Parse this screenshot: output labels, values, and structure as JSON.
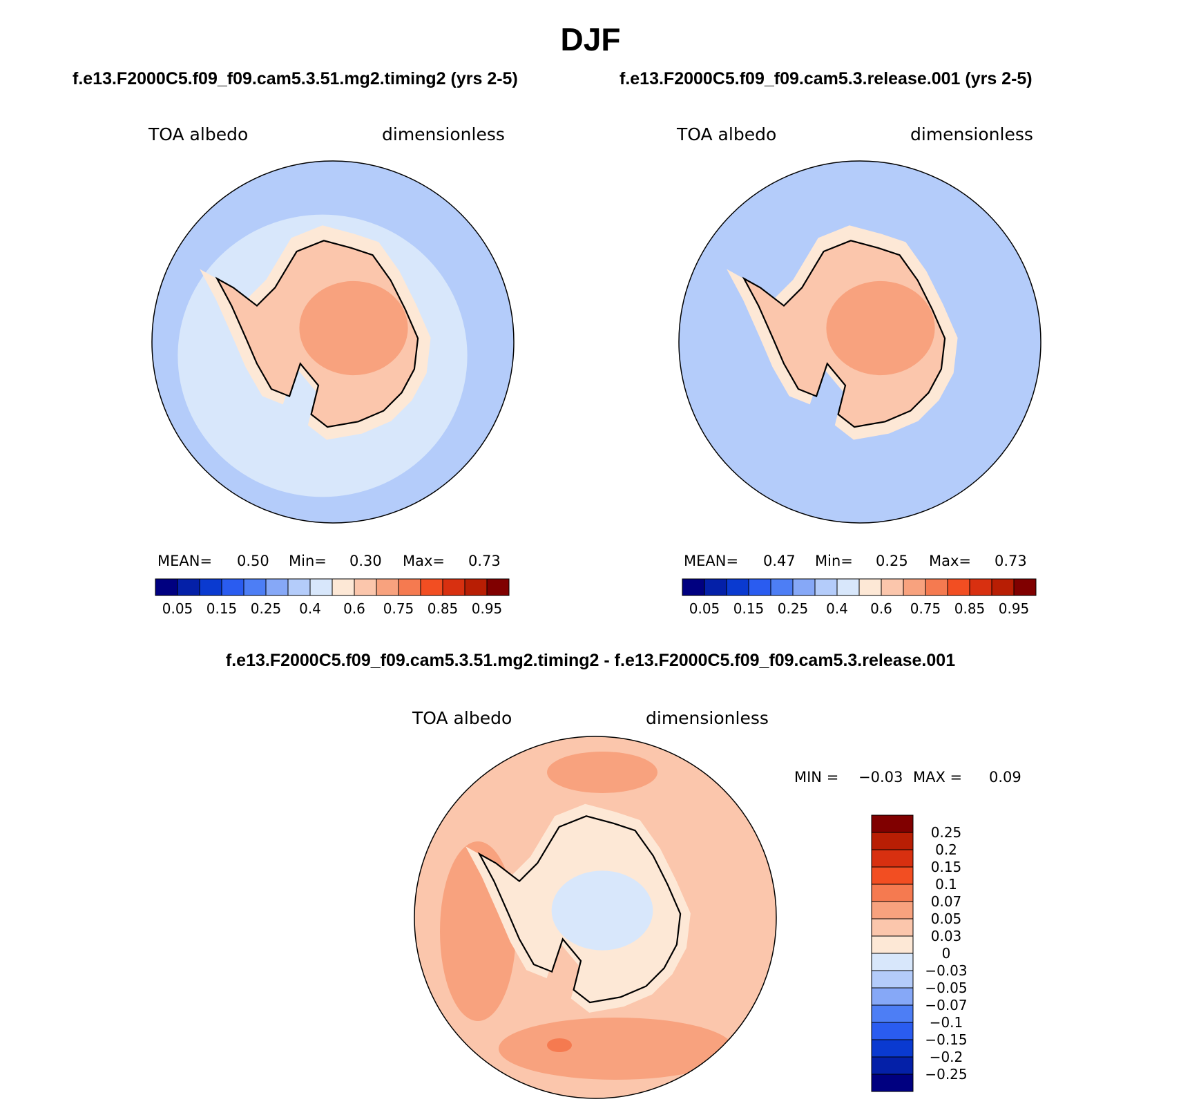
{
  "figure": {
    "title": "DJF",
    "panel_left_title": "f.e13.F2000C5.f09_f09.cam5.3.51.mg2.timing2 (yrs 2-5)",
    "panel_right_title": "f.e13.F2000C5.f09_f09.cam5.3.release.001 (yrs 2-5)",
    "diff_title": "f.e13.F2000C5.f09_f09.cam5.3.51.mg2.timing2 - f.e13.F2000C5.f09_f09.cam5.3.release.001"
  },
  "chart_data": [
    {
      "type": "heatmap",
      "projection": "south-polar-stereographic",
      "variable": "TOA albedo",
      "units": "dimensionless",
      "mean_label": "MEAN=",
      "mean": "0.50",
      "min_label": "Min=",
      "min": "0.30",
      "max_label": "Max=",
      "max": "0.73",
      "colorbar": {
        "orientation": "horizontal",
        "tick_labels": [
          "0.05",
          "0.15",
          "0.25",
          "0.4",
          "0.6",
          "0.75",
          "0.85",
          "0.95"
        ],
        "colors": [
          "#000080",
          "#0420a8",
          "#0a3ad0",
          "#2a5cf0",
          "#4d7ef5",
          "#86a8f7",
          "#b4ccfa",
          "#d8e7fb",
          "#fde8d6",
          "#fbc6ac",
          "#f8a27e",
          "#f57a50",
          "#f24e22",
          "#d83010",
          "#b81e04",
          "#800000"
        ]
      },
      "regions": {
        "ocean_outer": 0.37,
        "ocean_inner": 0.43,
        "ice_margin": 0.57,
        "continent": 0.64,
        "plateau": 0.7
      }
    },
    {
      "type": "heatmap",
      "projection": "south-polar-stereographic",
      "variable": "TOA albedo",
      "units": "dimensionless",
      "mean_label": "MEAN=",
      "mean": "0.47",
      "min_label": "Min=",
      "min": "0.25",
      "max_label": "Max=",
      "max": "0.73",
      "colorbar": {
        "orientation": "horizontal",
        "tick_labels": [
          "0.05",
          "0.15",
          "0.25",
          "0.4",
          "0.6",
          "0.75",
          "0.85",
          "0.95"
        ],
        "colors": [
          "#000080",
          "#0420a8",
          "#0a3ad0",
          "#2a5cf0",
          "#4d7ef5",
          "#86a8f7",
          "#b4ccfa",
          "#d8e7fb",
          "#fde8d6",
          "#fbc6ac",
          "#f8a27e",
          "#f57a50",
          "#f24e22",
          "#d83010",
          "#b81e04",
          "#800000"
        ]
      },
      "regions": {
        "ocean_outer": 0.33,
        "ocean_inner": 0.38,
        "ice_margin": 0.55,
        "continent": 0.64,
        "plateau": 0.7
      }
    },
    {
      "type": "heatmap",
      "projection": "south-polar-stereographic",
      "variable": "TOA albedo",
      "units": "dimensionless",
      "min_label": "MIN =",
      "min": "−0.03",
      "max_label": "MAX =",
      "max": "0.09",
      "colorbar": {
        "orientation": "vertical",
        "tick_labels": [
          "0.25",
          "0.2",
          "0.15",
          "0.1",
          "0.07",
          "0.05",
          "0.03",
          "0",
          "−0.03",
          "−0.05",
          "−0.07",
          "−0.1",
          "−0.15",
          "−0.2",
          "−0.25"
        ],
        "colors": [
          "#800000",
          "#b81e04",
          "#d83010",
          "#f24e22",
          "#f57a50",
          "#f8a27e",
          "#fbc6ac",
          "#fde8d6",
          "#d8e7fb",
          "#b4ccfa",
          "#86a8f7",
          "#4d7ef5",
          "#2a5cf0",
          "#0a3ad0",
          "#0420a8",
          "#000080"
        ]
      },
      "regions": {
        "ocean": 0.04,
        "ocean_patches": 0.06,
        "ocean_hotspot": 0.08,
        "continent": 0.01,
        "continent_patches": -0.01
      }
    }
  ]
}
